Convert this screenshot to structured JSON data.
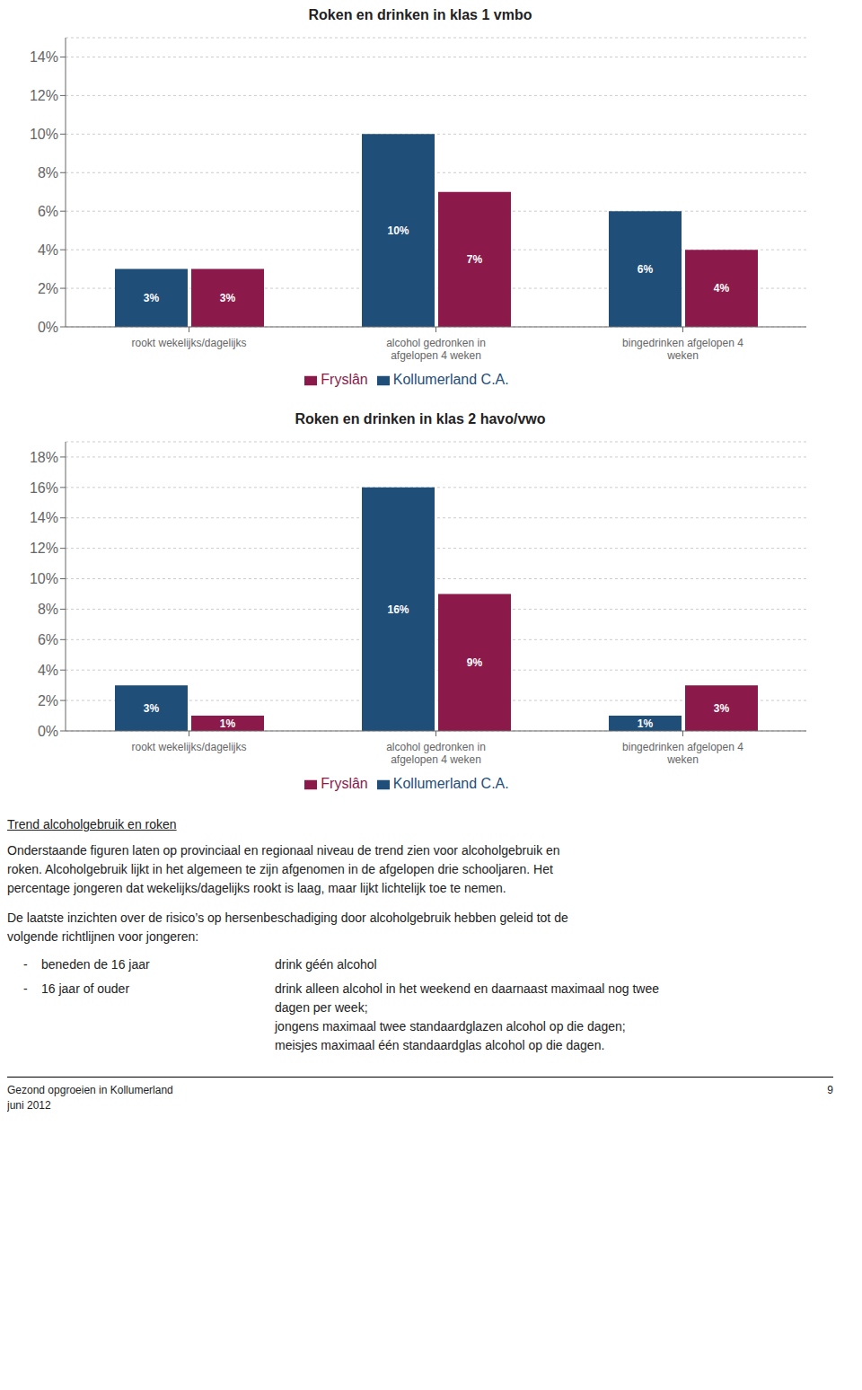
{
  "chart_data": [
    {
      "type": "bar",
      "title": "Roken en drinken in klas 1 vmbo",
      "categories": [
        "rookt wekelijks/dagelijks",
        "alcohol gedronken in\nafgelopen 4 weken",
        "bingedrinken afgelopen 4\nweken"
      ],
      "series": [
        {
          "name": "Kollumerland C.A.",
          "color": "#1F4E79",
          "values": [
            3,
            10,
            6
          ],
          "value_labels": [
            "3%",
            "10%",
            "6%"
          ]
        },
        {
          "name": "Fryslân",
          "color": "#8B1A4A",
          "values": [
            3,
            7,
            4
          ],
          "value_labels": [
            "3%",
            "7%",
            "4%"
          ]
        }
      ],
      "ylim": [
        0,
        15
      ],
      "yticks": [
        {
          "value": 0,
          "label": "0%"
        },
        {
          "value": 2,
          "label": "2%"
        },
        {
          "value": 4,
          "label": "4%"
        },
        {
          "value": 6,
          "label": "6%"
        },
        {
          "value": 8,
          "label": "8%"
        },
        {
          "value": 10,
          "label": "10%"
        },
        {
          "value": 12,
          "label": "12%"
        },
        {
          "value": 14,
          "label": "14%"
        }
      ],
      "grid": true,
      "legend": "bottom",
      "data_labels": true
    },
    {
      "type": "bar",
      "title": "Roken en drinken in klas 2 havo/vwo",
      "categories": [
        "rookt wekelijks/dagelijks",
        "alcohol gedronken in\nafgelopen 4 weken",
        "bingedrinken afgelopen 4\nweken"
      ],
      "series": [
        {
          "name": "Kollumerland C.A.",
          "color": "#1F4E79",
          "values": [
            3,
            16,
            1
          ],
          "value_labels": [
            "3%",
            "16%",
            "1%"
          ]
        },
        {
          "name": "Fryslân",
          "color": "#8B1A4A",
          "values": [
            1,
            9,
            3
          ],
          "value_labels": [
            "1%",
            "9%",
            "3%"
          ]
        }
      ],
      "ylim": [
        0,
        19
      ],
      "yticks": [
        {
          "value": 0,
          "label": "0%"
        },
        {
          "value": 2,
          "label": "2%"
        },
        {
          "value": 4,
          "label": "4%"
        },
        {
          "value": 6,
          "label": "6%"
        },
        {
          "value": 8,
          "label": "8%"
        },
        {
          "value": 10,
          "label": "10%"
        },
        {
          "value": 12,
          "label": "12%"
        },
        {
          "value": 14,
          "label": "14%"
        },
        {
          "value": 16,
          "label": "16%"
        },
        {
          "value": 18,
          "label": "18%"
        }
      ],
      "grid": true,
      "legend": "bottom",
      "data_labels": true
    }
  ],
  "annotations": [
    "Trend alcoholgebruik en roken",
    "Onderstaande figuren laten op provinciaal en regionaal niveau de trend zien voor alcoholgebruik en\nroken. Alcoholgebruik lijkt in het algemeen te zijn afgenomen in de afgelopen drie schooljaren. Het\npercentage jongeren dat wekelijks/dagelijks rookt is laag, maar lijkt lichtelijk toe te nemen.",
    "De laatste inzichten over de risico’s op hersenbeschadiging door alcoholgebruik hebben geleid tot de\nvolgende richtlijnen voor jongeren:",
    "-",
    "beneden de 16 jaar",
    "drink géén alcohol",
    "-",
    "16 jaar of ouder",
    "drink alleen alcohol in het weekend en daarnaast maximaal nog twee\ndagen per week;\njongens maximaal twee standaardglazen alcohol op die dagen;\nmeisjes maximaal één standaardglas alcohol op die dagen.",
    "Gezond opgroeien in Kollumerland\njuni 2012",
    "9"
  ]
}
